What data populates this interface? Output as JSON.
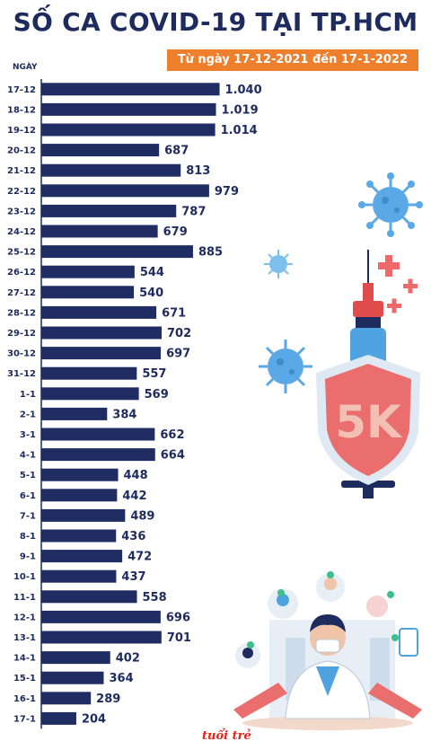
{
  "title": "SỐ CA COVID-19 TẠI TP.HCM",
  "subtitle": "Từ ngày 17-12-2021 đến 17-1-2022",
  "logo_text": "tuổi trẻ",
  "shield_text": "5K",
  "chart_data": {
    "type": "bar",
    "orientation": "horizontal",
    "title": "SỐ CA COVID-19 TẠI TP.HCM",
    "subtitle": "Từ ngày 17-12-2021 đến 17-1-2022",
    "ylabel": "NGÀY",
    "xlabel": "",
    "color": "#1f2d63",
    "categories": [
      "17-12",
      "18-12",
      "19-12",
      "20-12",
      "21-12",
      "22-12",
      "23-12",
      "24-12",
      "25-12",
      "26-12",
      "27-12",
      "28-12",
      "29-12",
      "30-12",
      "31-12",
      "1-1",
      "2-1",
      "3-1",
      "4-1",
      "5-1",
      "6-1",
      "7-1",
      "8-1",
      "9-1",
      "10-1",
      "11-1",
      "12-1",
      "13-1",
      "14-1",
      "15-1",
      "16-1",
      "17-1"
    ],
    "values": [
      1040,
      1019,
      1014,
      687,
      813,
      979,
      787,
      679,
      885,
      544,
      540,
      671,
      702,
      697,
      557,
      569,
      384,
      662,
      664,
      448,
      442,
      489,
      436,
      472,
      437,
      558,
      696,
      701,
      402,
      364,
      289,
      204
    ],
    "value_labels": [
      "1.040",
      "1.019",
      "1.014",
      "687",
      "813",
      "979",
      "787",
      "679",
      "885",
      "544",
      "540",
      "671",
      "702",
      "697",
      "557",
      "569",
      "384",
      "662",
      "664",
      "448",
      "442",
      "489",
      "436",
      "472",
      "437",
      "558",
      "696",
      "701",
      "402",
      "364",
      "289",
      "204"
    ],
    "xlim": [
      0,
      1100
    ],
    "grid": false,
    "legend": "none"
  }
}
